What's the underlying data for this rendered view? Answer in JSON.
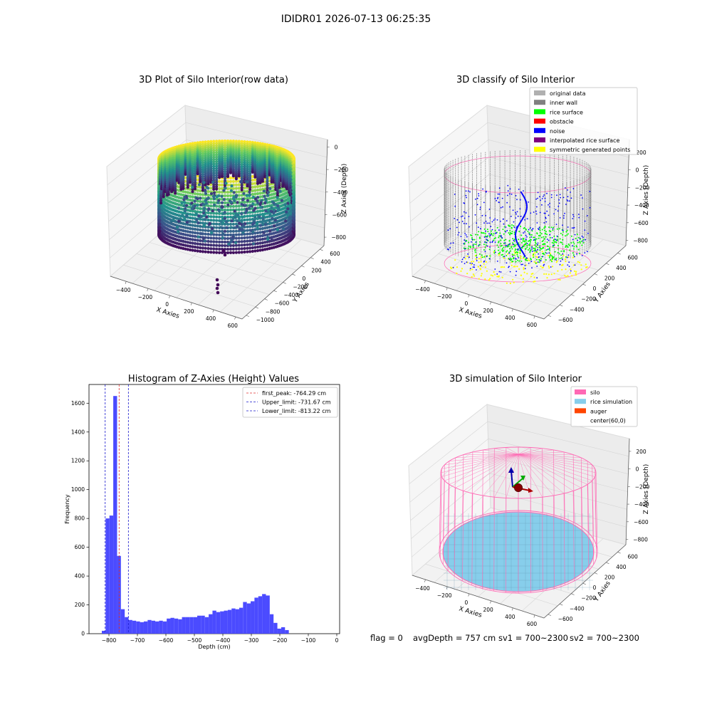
{
  "suptitle": "IDIDR01 2026-07-13 06:25:35",
  "status_line": {
    "flag": "flag = 0",
    "avg_depth": "avgDepth = 757 cm",
    "sv1": "sv1 = 700~2300",
    "sv2": "sv2 = 700~2300"
  },
  "colors": {
    "histogram_bar": "#4b4bff",
    "first_peak_line": "#e03030",
    "limit_lines": "#1a1acc",
    "silo": "#ff69b4",
    "rice_simulation": "#87ceeb",
    "auger": "#ff4500",
    "inner_wall": "#808080",
    "rice_surface": "#00ff00",
    "obstacle": "#ff0000",
    "noise": "#0000ff",
    "interpolated_rice_surface": "#800080",
    "symmetric_generated_points": "#ffff00",
    "original_data": "#b0b0b0"
  },
  "chart_data": [
    {
      "type": "scatter3d",
      "title": "3D Plot of Silo Interior(row data)",
      "xlabel": "X Axies",
      "ylabel": "Y Axies",
      "zlabel": "Z Axies (Depth)",
      "x_ticks": [
        "−400",
        "−200",
        "0",
        "200",
        "400",
        "600"
      ],
      "y_ticks": [
        "−1000",
        "−800",
        "−600",
        "−400",
        "−200",
        "0",
        "200",
        "400",
        "600"
      ],
      "z_ticks": [
        "−800",
        "−600",
        "−400",
        "−200",
        "0"
      ],
      "colormap": "viridis (by depth)"
    },
    {
      "type": "scatter3d",
      "title": "3D classify of Silo Interior",
      "xlabel": "X Axies",
      "ylabel": "Y Axies",
      "zlabel": "Z Axies (Depth)",
      "x_ticks": [
        "−400",
        "−200",
        "0",
        "200",
        "400",
        "600"
      ],
      "y_ticks": [
        "−600",
        "−400",
        "−200",
        "0",
        "200",
        "400",
        "600"
      ],
      "z_ticks": [
        "−800",
        "−600",
        "−400",
        "−200",
        "0",
        "200"
      ],
      "legend": [
        {
          "label": "original data",
          "color": "#b0b0b0"
        },
        {
          "label": "inner wall",
          "color": "#808080"
        },
        {
          "label": "rice surface",
          "color": "#00ff00"
        },
        {
          "label": "obstacle",
          "color": "#ff0000"
        },
        {
          "label": "noise",
          "color": "#0000ff"
        },
        {
          "label": "interpolated rice surface",
          "color": "#800080"
        },
        {
          "label": "symmetric generated points",
          "color": "#ffff00"
        }
      ],
      "legend_position": "top-right"
    },
    {
      "type": "bar",
      "title": "Histogram of Z-Axies (Height) Values",
      "xlabel": "Depth (cm)",
      "ylabel": "Frequency",
      "xlim": [
        -870,
        10
      ],
      "ylim": [
        0,
        1730
      ],
      "x_ticks": [
        -800,
        -700,
        -600,
        -500,
        -400,
        -300,
        -200,
        -100,
        0
      ],
      "x_tick_labels": [
        "−800",
        "−700",
        "−600",
        "−500",
        "−400",
        "−300",
        "−200",
        "−100",
        "0"
      ],
      "y_ticks": [
        0,
        200,
        400,
        600,
        800,
        1000,
        1200,
        1400,
        1600
      ],
      "y_tick_labels": [
        "0",
        "200",
        "400",
        "600",
        "800",
        "1000",
        "1200",
        "1400",
        "1600"
      ],
      "bin_start": -825,
      "bin_width": 13.4,
      "values": [
        20,
        800,
        820,
        1650,
        540,
        170,
        115,
        95,
        90,
        85,
        80,
        85,
        95,
        90,
        85,
        90,
        85,
        105,
        110,
        105,
        100,
        115,
        115,
        115,
        115,
        125,
        125,
        115,
        135,
        160,
        150,
        155,
        160,
        165,
        175,
        170,
        180,
        220,
        210,
        225,
        250,
        260,
        275,
        265,
        135,
        75,
        35,
        45,
        25
      ],
      "lines": [
        {
          "label": "first_peak: -764.29 cm",
          "x": -764.29,
          "color": "#e03030"
        },
        {
          "label": "Upper_limit: -731.67 cm",
          "x": -731.67,
          "color": "#1a1acc"
        },
        {
          "label": "Lower_limit: -813.22 cm",
          "x": -813.22,
          "color": "#1a1acc"
        }
      ],
      "legend_position": "top-right"
    },
    {
      "type": "surface3d",
      "title": "3D simulation of Silo Interior",
      "xlabel": "X Axies",
      "ylabel": "Y Axies",
      "zlabel": "Z Axies (Depth)",
      "x_ticks": [
        "−400",
        "−200",
        "0",
        "200",
        "400",
        "600"
      ],
      "y_ticks": [
        "−600",
        "−400",
        "−200",
        "0",
        "200",
        "400",
        "600"
      ],
      "z_ticks": [
        "−800",
        "−600",
        "−400",
        "−200",
        "0",
        "200"
      ],
      "legend": [
        {
          "label": "silo",
          "color": "#ff69b4"
        },
        {
          "label": "rice simulation",
          "color": "#87ceeb"
        },
        {
          "label": "auger",
          "color": "#ff4500"
        },
        {
          "label": "center(60,0)",
          "color": ""
        }
      ],
      "legend_position": "top-right"
    }
  ]
}
